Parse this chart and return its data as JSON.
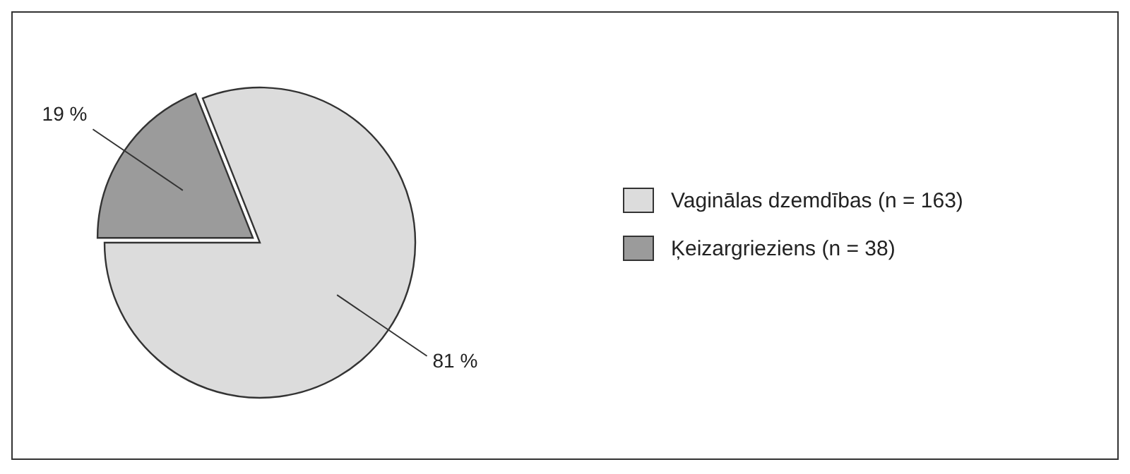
{
  "chart_data": {
    "type": "pie",
    "categories": [
      "Vaginālas dzemdības (n = 163)",
      "Ķeizargrieziens (n = 38)"
    ],
    "values": [
      81,
      19
    ],
    "colors": [
      "#dcdcdc",
      "#9b9b9b"
    ],
    "value_labels": [
      "81 %",
      "19 %"
    ],
    "legend": "right"
  }
}
